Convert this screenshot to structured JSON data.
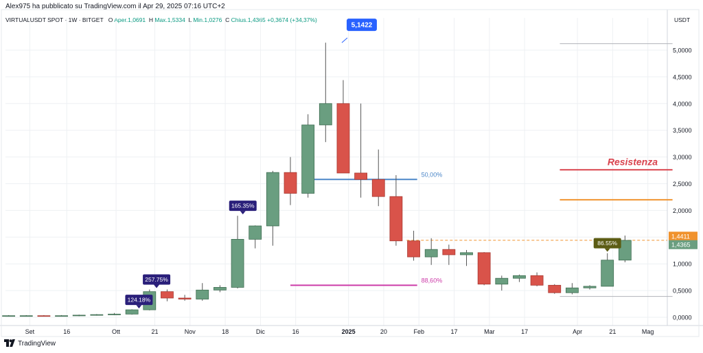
{
  "header": {
    "published_by": "Alex975 ha pubblicato su TradingView.com il Apr 29, 2025 07:16 UTC+2"
  },
  "legend": {
    "symbol": "VIRTUALUSDT SPOT · 1W · BITGET",
    "open_label": "O",
    "open_value": "Aper.1,0691",
    "high_label": "H",
    "high_value": "Max.1,5334",
    "low_label": "L",
    "low_value": "Min.1,0276",
    "close_label": "C",
    "close_value": "Chius.1,4365",
    "change_value": "+0,3674 (+34,37%)"
  },
  "axis_currency": "USDT",
  "footer": {
    "brand": "TradingView",
    "logo_icon": "tradingview-logo-icon"
  },
  "colors": {
    "up": "#6a9e80",
    "down": "#d9534a",
    "up_border": "#3f6e52",
    "down_border": "#a83a32",
    "fib50": "#4a86c8",
    "fib88": "#cc3aa8",
    "resistance": "#d9434d",
    "orange": "#f0922d",
    "dashed": "#f0922d",
    "label_purple": "#2a1f7a",
    "label_blue": "#2962ff",
    "label_olive": "#5c5c14"
  },
  "chart_data": {
    "type": "candlestick",
    "y_range": [
      -0.05,
      5.4
    ],
    "y_ticks": [
      "5,0000",
      "4,5000",
      "4,0000",
      "3,5000",
      "3,0000",
      "2,5000",
      "2,0000",
      "1,5000",
      "1,0000",
      "0,5000",
      "0,0000"
    ],
    "y_tick_values": [
      5.0,
      4.5,
      4.0,
      3.5,
      3.0,
      2.5,
      2.0,
      1.5,
      1.0,
      0.5,
      0.0
    ],
    "x_ticks": [
      {
        "label": "Set",
        "index": 1.2
      },
      {
        "label": "16",
        "index": 3.3
      },
      {
        "label": "Ott",
        "index": 6.1
      },
      {
        "label": "21",
        "index": 8.3
      },
      {
        "label": "Nov",
        "index": 10.3
      },
      {
        "label": "18",
        "index": 12.3
      },
      {
        "label": "Dic",
        "index": 14.3
      },
      {
        "label": "16",
        "index": 16.3
      },
      {
        "label": "2025",
        "index": 19.3,
        "bold": true
      },
      {
        "label": "20",
        "index": 21.3
      },
      {
        "label": "Feb",
        "index": 23.3
      },
      {
        "label": "17",
        "index": 25.3
      },
      {
        "label": "Mar",
        "index": 27.3
      },
      {
        "label": "17",
        "index": 29.3
      },
      {
        "label": "Apr",
        "index": 32.3
      },
      {
        "label": "21",
        "index": 34.3
      },
      {
        "label": "Mag",
        "index": 36.3
      }
    ],
    "candles": [
      {
        "o": 0.03,
        "h": 0.04,
        "l": 0.02,
        "c": 0.03
      },
      {
        "o": 0.03,
        "h": 0.04,
        "l": 0.02,
        "c": 0.03
      },
      {
        "o": 0.03,
        "h": 0.04,
        "l": 0.02,
        "c": 0.02
      },
      {
        "o": 0.02,
        "h": 0.04,
        "l": 0.02,
        "c": 0.03
      },
      {
        "o": 0.03,
        "h": 0.05,
        "l": 0.02,
        "c": 0.04
      },
      {
        "o": 0.04,
        "h": 0.06,
        "l": 0.03,
        "c": 0.05
      },
      {
        "o": 0.05,
        "h": 0.08,
        "l": 0.04,
        "c": 0.06
      },
      {
        "o": 0.06,
        "h": 0.15,
        "l": 0.05,
        "c": 0.14
      },
      {
        "o": 0.14,
        "h": 0.52,
        "l": 0.13,
        "c": 0.48
      },
      {
        "o": 0.48,
        "h": 0.52,
        "l": 0.3,
        "c": 0.36
      },
      {
        "o": 0.36,
        "h": 0.42,
        "l": 0.31,
        "c": 0.34
      },
      {
        "o": 0.34,
        "h": 0.64,
        "l": 0.31,
        "c": 0.51
      },
      {
        "o": 0.51,
        "h": 0.6,
        "l": 0.47,
        "c": 0.56
      },
      {
        "o": 0.56,
        "h": 1.9,
        "l": 0.54,
        "c": 1.46
      },
      {
        "o": 1.46,
        "h": 1.72,
        "l": 1.29,
        "c": 1.71
      },
      {
        "o": 1.71,
        "h": 2.74,
        "l": 1.34,
        "c": 2.71
      },
      {
        "o": 2.71,
        "h": 3.0,
        "l": 2.1,
        "c": 2.32
      },
      {
        "o": 2.32,
        "h": 3.8,
        "l": 2.24,
        "c": 3.6
      },
      {
        "o": 3.6,
        "h": 5.14,
        "l": 3.28,
        "c": 4.0
      },
      {
        "o": 4.0,
        "h": 4.44,
        "l": 2.7,
        "c": 2.7
      },
      {
        "o": 2.7,
        "h": 4.0,
        "l": 2.24,
        "c": 2.58
      },
      {
        "o": 2.58,
        "h": 3.14,
        "l": 2.08,
        "c": 2.26
      },
      {
        "o": 2.26,
        "h": 2.66,
        "l": 1.34,
        "c": 1.43
      },
      {
        "o": 1.43,
        "h": 1.62,
        "l": 1.06,
        "c": 1.13
      },
      {
        "o": 1.13,
        "h": 1.48,
        "l": 0.98,
        "c": 1.27
      },
      {
        "o": 1.27,
        "h": 1.36,
        "l": 0.98,
        "c": 1.17
      },
      {
        "o": 1.17,
        "h": 1.26,
        "l": 0.96,
        "c": 1.21
      },
      {
        "o": 1.21,
        "h": 1.22,
        "l": 0.6,
        "c": 0.62
      },
      {
        "o": 0.62,
        "h": 0.78,
        "l": 0.5,
        "c": 0.73
      },
      {
        "o": 0.73,
        "h": 0.8,
        "l": 0.66,
        "c": 0.78
      },
      {
        "o": 0.78,
        "h": 0.84,
        "l": 0.58,
        "c": 0.6
      },
      {
        "o": 0.6,
        "h": 0.62,
        "l": 0.44,
        "c": 0.46
      },
      {
        "o": 0.46,
        "h": 0.64,
        "l": 0.43,
        "c": 0.55
      },
      {
        "o": 0.55,
        "h": 0.6,
        "l": 0.52,
        "c": 0.58
      },
      {
        "o": 0.58,
        "h": 1.2,
        "l": 0.58,
        "c": 1.07
      },
      {
        "o": 1.07,
        "h": 1.53,
        "l": 1.03,
        "c": 1.44
      }
    ],
    "levels": [
      {
        "name": "fib-50",
        "price": 2.58,
        "label": "50,00%",
        "from_index": 17,
        "to_index": 23.2
      },
      {
        "name": "fib-88",
        "price": 0.6,
        "label": "88,60%",
        "from_index": 16,
        "to_index": 23.2
      },
      {
        "name": "resistance",
        "price": 2.76,
        "label": "Resistenza",
        "from_index": 31.3,
        "to_index": 37.7
      },
      {
        "name": "orange-level",
        "price": 2.2,
        "label": "",
        "from_index": 31.3,
        "to_index": 37.7
      },
      {
        "name": "top-gray",
        "price": 5.12,
        "label": "",
        "from_index": 31.3,
        "to_index": 37.7
      },
      {
        "name": "low-gray",
        "price": 0.39,
        "label": "",
        "from_index": 31.3,
        "to_index": 37.7
      }
    ],
    "dashed_price": 1.4411,
    "price_labels": [
      {
        "text": "1,4411",
        "price": 1.4411,
        "kind": "orange"
      },
      {
        "text": "1,4365",
        "price": 1.4365,
        "kind": "green"
      }
    ],
    "callouts": [
      {
        "text": "124.18%",
        "index": 7.4,
        "anchor_price": 0.14,
        "kind": "purple"
      },
      {
        "text": "257.75%",
        "index": 8.4,
        "anchor_price": 0.52,
        "kind": "purple"
      },
      {
        "text": "165.35%",
        "index": 13.3,
        "anchor_price": 1.9,
        "kind": "purple"
      },
      {
        "text": "5,1422",
        "index": 19.0,
        "anchor_price": 5.14,
        "kind": "blue"
      },
      {
        "text": "86.55%",
        "index": 34.0,
        "anchor_price": 1.2,
        "kind": "olive"
      }
    ]
  }
}
